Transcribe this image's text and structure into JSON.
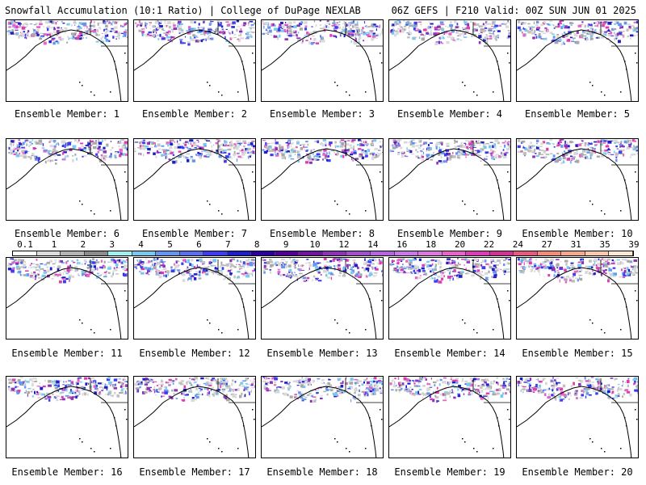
{
  "header": {
    "left": "Snowfall Accumulation (10:1 Ratio) | College of DuPage NEXLAB",
    "right": "06Z GEFS | F210 Valid: 00Z SUN JUN 01 2025"
  },
  "members": [
    "Ensemble Member: 1",
    "Ensemble Member: 2",
    "Ensemble Member: 3",
    "Ensemble Member: 4",
    "Ensemble Member: 5",
    "Ensemble Member: 6",
    "Ensemble Member: 7",
    "Ensemble Member: 8",
    "Ensemble Member: 9",
    "Ensemble Member: 10",
    "Ensemble Member: 11",
    "Ensemble Member: 12",
    "Ensemble Member: 13",
    "Ensemble Member: 14",
    "Ensemble Member: 15",
    "Ensemble Member: 16",
    "Ensemble Member: 17",
    "Ensemble Member: 18",
    "Ensemble Member: 19",
    "Ensemble Member: 20"
  ],
  "colorbar": {
    "labels": [
      "0.1",
      "1",
      "2",
      "3",
      "4",
      "5",
      "6",
      "7",
      "8",
      "9",
      "10",
      "12",
      "14",
      "16",
      "18",
      "20",
      "22",
      "24",
      "27",
      "31",
      "35",
      "39"
    ],
    "colors": [
      "#ffffff",
      "#dcdcdc",
      "#b4b4b4",
      "#8c8c8c",
      "#a0f0f0",
      "#78c8f0",
      "#6496f0",
      "#5a6ef0",
      "#3c3cf0",
      "#1e1ec8",
      "#2800a0",
      "#500096",
      "#6e14a0",
      "#8c32b4",
      "#a050c8",
      "#b464dc",
      "#c878e6",
      "#dc78dc",
      "#e664c8",
      "#dc3cb4",
      "#d23296",
      "#e65a82",
      "#f08c78",
      "#f5a88c",
      "#fac8aa",
      "#fde6d2"
    ]
  }
}
